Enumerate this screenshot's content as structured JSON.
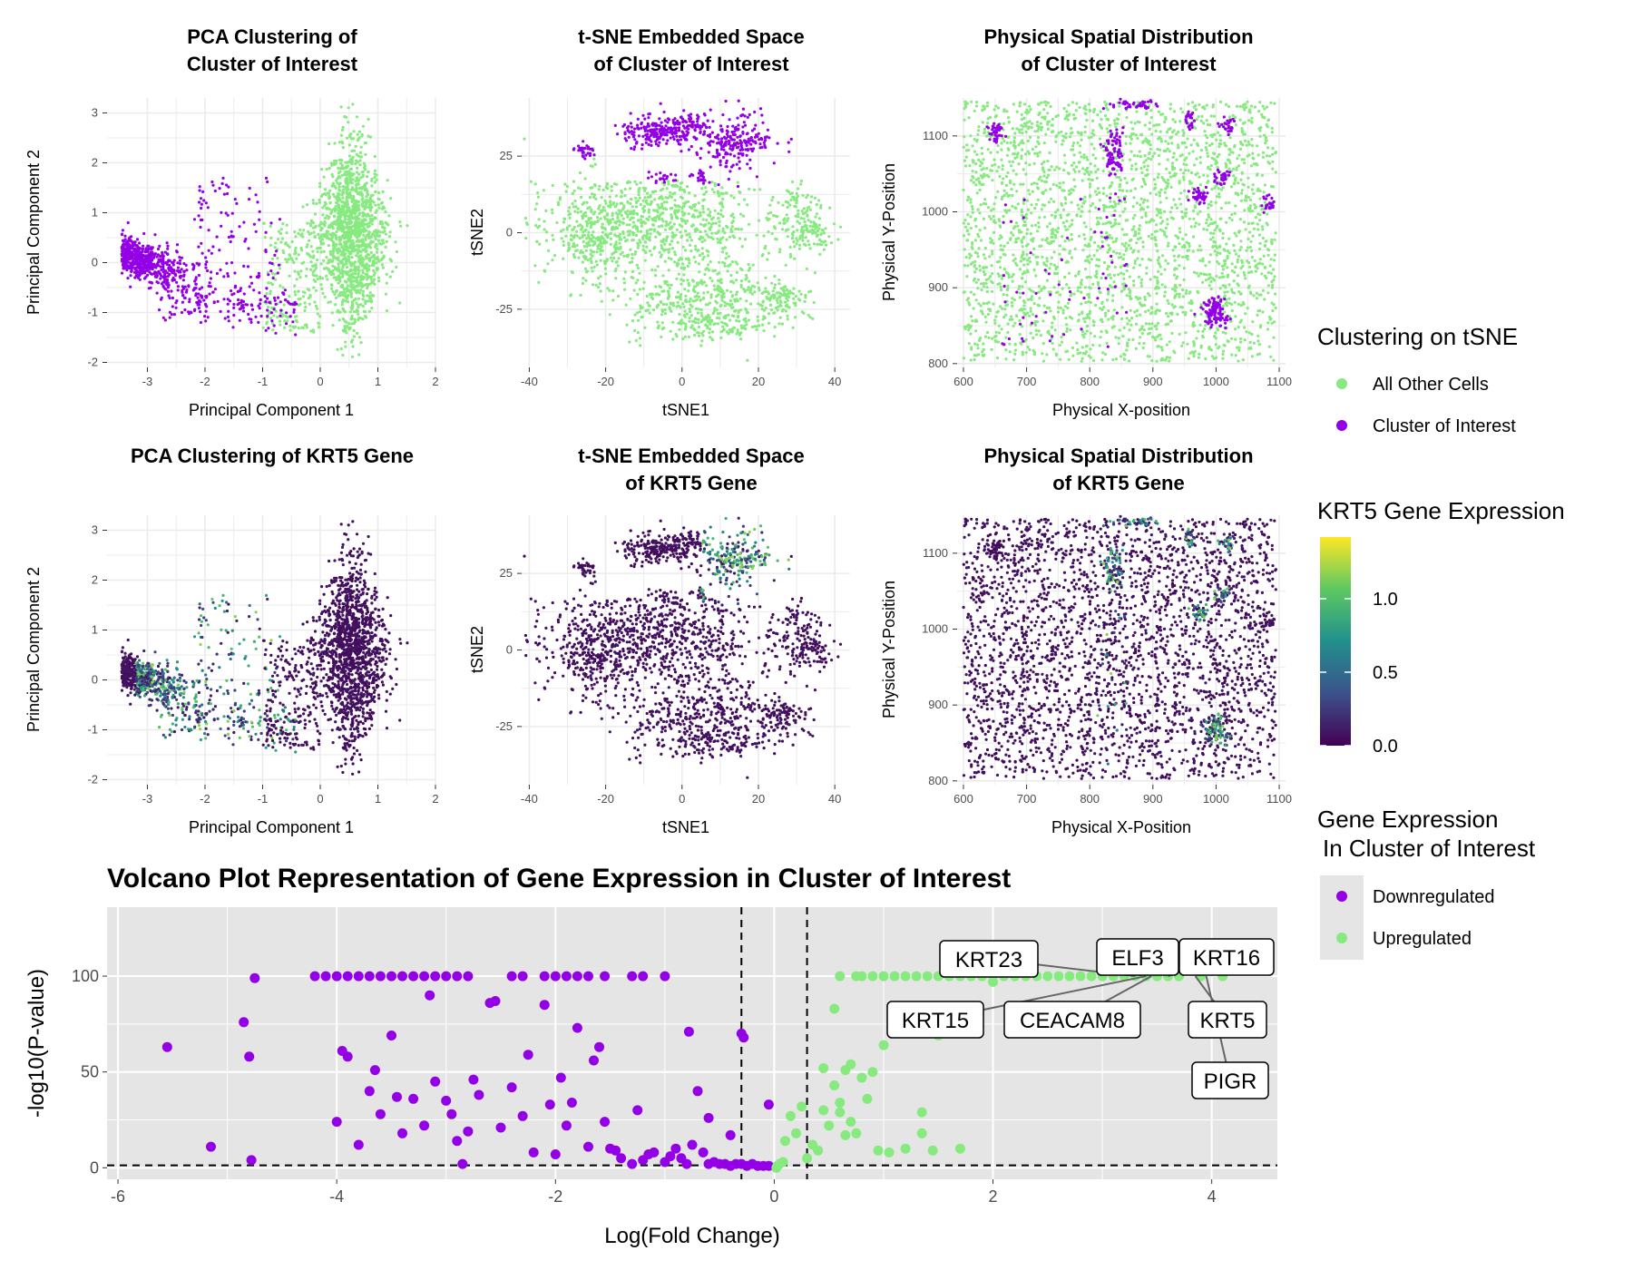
{
  "colors": {
    "cluster": "#9400e6",
    "other": "#86ea7f",
    "viridis": [
      "#440154",
      "#3b528b",
      "#21908c",
      "#5dc863",
      "#fde725"
    ],
    "volcano_bg": "#e5e5e5"
  },
  "legends": {
    "cluster": {
      "title": "Clustering on tSNE",
      "items": [
        "All Other Cells",
        "Cluster of Interest"
      ]
    },
    "expression": {
      "title": "KRT5 Gene Expression",
      "ticks": [
        "1.0",
        "0.5",
        "0.0"
      ]
    },
    "regulation": {
      "title_line1": "Gene Expression",
      "title_line2": "In Cluster of Interest",
      "items": [
        "Downregulated",
        "Upregulated"
      ]
    }
  },
  "chart_data": [
    {
      "type": "scatter",
      "title_line1": "PCA Clustering of",
      "title_line2": "Cluster of Interest",
      "xlabel": "Principal Component 1",
      "ylabel": "Principal Component 2",
      "xlim": [
        -3.7,
        2.0
      ],
      "ylim": [
        -2.1,
        3.3
      ],
      "xticks": [
        -3,
        -2,
        -1,
        0,
        1,
        2
      ],
      "yticks": [
        -2,
        -1,
        0,
        1,
        2,
        3
      ],
      "color_by": "cluster",
      "series": [
        {
          "name": "All Other Cells",
          "regions": [
            {
              "cx": 0.6,
              "cy": 0.5,
              "sx": 0.45,
              "sy": 1.1
            }
          ]
        },
        {
          "name": "Cluster of Interest",
          "regions": [
            {
              "cx": -2.9,
              "cy": 0.1,
              "sx": 0.4,
              "sy": 0.35
            }
          ]
        }
      ]
    },
    {
      "type": "scatter",
      "title_line1": "t-SNE Embedded Space",
      "title_line2": "of Cluster of Interest",
      "xlabel": "tSNE1",
      "ylabel": "tSNE2",
      "xlim": [
        -42,
        44
      ],
      "ylim": [
        -44,
        44
      ],
      "xticks": [
        -40,
        -20,
        0,
        20,
        40
      ],
      "yticks": [
        -25,
        0,
        25
      ],
      "color_by": "cluster",
      "series": [
        {
          "name": "All Other Cells",
          "regions": [
            {
              "cx": -5,
              "cy": 0,
              "sx": 15,
              "sy": 9
            },
            {
              "cx": 5,
              "cy": -22,
              "sx": 12,
              "sy": 6
            },
            {
              "cx": 25,
              "cy": -22,
              "sx": 4,
              "sy": 4
            },
            {
              "cx": 33,
              "cy": 0,
              "sx": 4,
              "sy": 5
            }
          ]
        },
        {
          "name": "Cluster of Interest",
          "regions": [
            {
              "cx": -5,
              "cy": 34,
              "sx": 5,
              "sy": 3
            },
            {
              "cx": 13,
              "cy": 30,
              "sx": 6,
              "sy": 5
            },
            {
              "cx": -25,
              "cy": 27,
              "sx": 2,
              "sy": 1.5
            }
          ]
        }
      ]
    },
    {
      "type": "scatter",
      "title_line1": "Physical Spatial Distribution",
      "title_line2": "of Cluster of Interest",
      "xlabel": "Physical X-position",
      "ylabel": "Physical Y-Position",
      "xlim": [
        590,
        1110
      ],
      "ylim": [
        795,
        1150
      ],
      "xticks": [
        600,
        700,
        800,
        900,
        1000,
        1100
      ],
      "yticks": [
        800,
        900,
        1000,
        1100
      ],
      "color_by": "cluster",
      "series": [
        {
          "name": "All Other Cells",
          "regions": [
            {
              "cx": 850,
              "cy": 975,
              "sx": 140,
              "sy": 100
            }
          ]
        },
        {
          "name": "Cluster of Interest",
          "regions": [
            {
              "cx": 1000,
              "cy": 868,
              "sx": 10,
              "sy": 10
            },
            {
              "cx": 650,
              "cy": 1105,
              "sx": 7,
              "sy": 7
            },
            {
              "cx": 980,
              "cy": 1025,
              "sx": 8,
              "sy": 8
            },
            {
              "cx": 840,
              "cy": 1070,
              "sx": 10,
              "sy": 18
            }
          ]
        }
      ]
    },
    {
      "type": "scatter",
      "title_line1": "PCA Clustering of KRT5 Gene",
      "title_line2": "",
      "xlabel": "Principal Component 1",
      "ylabel": "Principal Component 2",
      "xlim": [
        -3.7,
        2.0
      ],
      "ylim": [
        -2.1,
        3.3
      ],
      "xticks": [
        -3,
        -2,
        -1,
        0,
        1,
        2
      ],
      "yticks": [
        -2,
        -1,
        0,
        1,
        2,
        3
      ],
      "color_by": "KRT5 expression",
      "color_range": [
        0.0,
        1.4
      ]
    },
    {
      "type": "scatter",
      "title_line1": "t-SNE Embedded Space",
      "title_line2": "of KRT5 Gene",
      "xlabel": "tSNE1",
      "ylabel": "tSNE2",
      "xlim": [
        -42,
        44
      ],
      "ylim": [
        -44,
        44
      ],
      "xticks": [
        -40,
        -20,
        0,
        20,
        40
      ],
      "yticks": [
        -25,
        0,
        25
      ],
      "color_by": "KRT5 expression",
      "color_range": [
        0.0,
        1.4
      ]
    },
    {
      "type": "scatter",
      "title_line1": "Physical Spatial Distribution",
      "title_line2": "of KRT5 Gene",
      "xlabel": "Physical X-Position",
      "ylabel": "Physical Y-Position",
      "xlim": [
        590,
        1110
      ],
      "ylim": [
        795,
        1150
      ],
      "xticks": [
        600,
        700,
        800,
        900,
        1000,
        1100
      ],
      "yticks": [
        800,
        900,
        1000,
        1100
      ],
      "color_by": "KRT5 expression",
      "color_range": [
        0.0,
        1.4
      ]
    },
    {
      "type": "scatter",
      "title": "Volcano Plot Representation of Gene Expression in Cluster of Interest",
      "xlabel": "Log(Fold Change)",
      "ylabel": "-log10(P-value)",
      "xlim": [
        -6.1,
        4.6
      ],
      "ylim": [
        -6,
        136
      ],
      "xticks": [
        -6,
        -4,
        -2,
        0,
        2,
        4
      ],
      "yticks": [
        0,
        50,
        100
      ],
      "thresholds": {
        "x": [
          -0.3,
          0.3
        ],
        "y": 1.3
      },
      "series": [
        {
          "name": "Downregulated",
          "points": [
            [
              -5.55,
              63
            ],
            [
              -5.15,
              11
            ],
            [
              -4.85,
              76
            ],
            [
              -4.8,
              58
            ],
            [
              -4.78,
              4
            ],
            [
              -4.75,
              99
            ],
            [
              -4.2,
              100
            ],
            [
              -4.1,
              100
            ],
            [
              -4.0,
              100
            ],
            [
              -3.9,
              100
            ],
            [
              -3.8,
              100
            ],
            [
              -3.7,
              100
            ],
            [
              -3.6,
              100
            ],
            [
              -3.5,
              100
            ],
            [
              -3.4,
              100
            ],
            [
              -3.3,
              100
            ],
            [
              -3.2,
              100
            ],
            [
              -3.1,
              100
            ],
            [
              -3.0,
              100
            ],
            [
              -2.9,
              100
            ],
            [
              -2.8,
              100
            ],
            [
              -2.4,
              100
            ],
            [
              -2.3,
              100
            ],
            [
              -2.1,
              100
            ],
            [
              -2.0,
              100
            ],
            [
              -1.9,
              100
            ],
            [
              -1.8,
              100
            ],
            [
              -1.7,
              100
            ],
            [
              -1.55,
              100
            ],
            [
              -1.3,
              100
            ],
            [
              -1.2,
              100
            ],
            [
              -1.0,
              100
            ],
            [
              -4.0,
              24
            ],
            [
              -3.95,
              61
            ],
            [
              -3.9,
              58
            ],
            [
              -3.8,
              12
            ],
            [
              -3.7,
              40
            ],
            [
              -3.65,
              51
            ],
            [
              -3.6,
              28
            ],
            [
              -3.5,
              69
            ],
            [
              -3.45,
              37
            ],
            [
              -3.4,
              18
            ],
            [
              -3.3,
              36
            ],
            [
              -3.2,
              22
            ],
            [
              -3.15,
              90
            ],
            [
              -3.1,
              45
            ],
            [
              -3.0,
              35
            ],
            [
              -2.95,
              28
            ],
            [
              -2.9,
              14
            ],
            [
              -2.85,
              2
            ],
            [
              -2.8,
              19
            ],
            [
              -2.75,
              46
            ],
            [
              -2.7,
              38
            ],
            [
              -2.6,
              86
            ],
            [
              -2.55,
              87
            ],
            [
              -2.5,
              21
            ],
            [
              -2.4,
              42
            ],
            [
              -2.3,
              27
            ],
            [
              -2.25,
              59
            ],
            [
              -2.2,
              8
            ],
            [
              -2.1,
              85
            ],
            [
              -2.05,
              33
            ],
            [
              -2.0,
              7
            ],
            [
              -1.95,
              47
            ],
            [
              -1.9,
              22
            ],
            [
              -1.85,
              34
            ],
            [
              -1.8,
              73
            ],
            [
              -1.7,
              11
            ],
            [
              -1.65,
              56
            ],
            [
              -1.6,
              63
            ],
            [
              -1.55,
              24
            ],
            [
              -1.5,
              10
            ],
            [
              -1.45,
              9
            ],
            [
              -1.4,
              5
            ],
            [
              -1.3,
              2
            ],
            [
              -1.2,
              4
            ],
            [
              -1.15,
              7
            ],
            [
              -1.1,
              8
            ],
            [
              -1.0,
              3
            ],
            [
              -0.95,
              6
            ],
            [
              -0.9,
              10
            ],
            [
              -0.85,
              5
            ],
            [
              -0.8,
              2
            ],
            [
              -0.75,
              12
            ],
            [
              -0.7,
              40
            ],
            [
              -0.65,
              8
            ],
            [
              -0.6,
              2
            ],
            [
              -0.55,
              3
            ],
            [
              -0.5,
              2
            ],
            [
              -0.45,
              2
            ],
            [
              -0.4,
              1
            ],
            [
              -0.35,
              2
            ],
            [
              -0.3,
              2
            ],
            [
              -0.25,
              1
            ],
            [
              -0.2,
              2
            ],
            [
              -0.15,
              1
            ],
            [
              -0.1,
              1
            ],
            [
              -0.05,
              1
            ],
            [
              -0.3,
              70
            ],
            [
              -0.28,
              68
            ],
            [
              -0.78,
              71
            ],
            [
              -0.05,
              33
            ],
            [
              -1.25,
              30
            ],
            [
              -0.6,
              26
            ],
            [
              -0.4,
              17
            ]
          ]
        },
        {
          "name": "Upregulated",
          "points": [
            [
              0.6,
              100
            ],
            [
              0.75,
              100
            ],
            [
              0.8,
              100
            ],
            [
              0.9,
              100
            ],
            [
              1.0,
              100
            ],
            [
              1.1,
              100
            ],
            [
              1.2,
              100
            ],
            [
              1.3,
              100
            ],
            [
              1.4,
              100
            ],
            [
              1.5,
              100
            ],
            [
              1.6,
              100
            ],
            [
              1.7,
              100
            ],
            [
              1.8,
              100
            ],
            [
              1.9,
              100
            ],
            [
              2.0,
              100
            ],
            [
              2.1,
              100
            ],
            [
              2.2,
              100
            ],
            [
              2.3,
              100
            ],
            [
              2.4,
              100
            ],
            [
              2.5,
              100
            ],
            [
              2.6,
              100
            ],
            [
              2.7,
              100
            ],
            [
              2.8,
              100
            ],
            [
              2.9,
              100
            ],
            [
              3.0,
              100
            ],
            [
              3.1,
              100
            ],
            [
              3.2,
              100
            ],
            [
              3.3,
              100
            ],
            [
              3.4,
              100
            ],
            [
              3.5,
              100
            ],
            [
              3.6,
              100
            ],
            [
              3.7,
              100
            ],
            [
              3.9,
              100
            ],
            [
              4.1,
              100
            ],
            [
              0.55,
              83
            ],
            [
              1.0,
              64
            ],
            [
              1.5,
              69
            ],
            [
              1.8,
              75
            ],
            [
              2.0,
              97
            ],
            [
              0.45,
              52
            ],
            [
              0.55,
              43
            ],
            [
              0.65,
              51
            ],
            [
              0.7,
              54
            ],
            [
              0.8,
              47
            ],
            [
              0.9,
              50
            ],
            [
              0.85,
              36
            ],
            [
              0.7,
              24
            ],
            [
              0.65,
              17
            ],
            [
              0.6,
              29
            ],
            [
              0.5,
              22
            ],
            [
              0.45,
              30
            ],
            [
              0.4,
              9
            ],
            [
              0.35,
              12
            ],
            [
              0.3,
              5
            ],
            [
              0.25,
              32
            ],
            [
              0.2,
              18
            ],
            [
              0.15,
              27
            ],
            [
              0.1,
              14
            ],
            [
              0.08,
              3
            ],
            [
              0.05,
              2
            ],
            [
              0.03,
              1
            ],
            [
              0.02,
              0
            ],
            [
              0.95,
              9
            ],
            [
              1.2,
              10
            ],
            [
              1.35,
              18
            ],
            [
              1.35,
              29
            ],
            [
              1.45,
              9
            ],
            [
              1.7,
              10
            ],
            [
              0.6,
              34
            ],
            [
              0.75,
              18
            ],
            [
              1.05,
              8
            ]
          ]
        }
      ],
      "labels": [
        {
          "text": "KRT23",
          "point": [
            3.3,
            100
          ]
        },
        {
          "text": "ELF3",
          "point": [
            3.35,
            100
          ]
        },
        {
          "text": "KRT16",
          "point": [
            3.6,
            100
          ]
        },
        {
          "text": "KRT15",
          "point": [
            3.4,
            100
          ]
        },
        {
          "text": "CEACAM8",
          "point": [
            3.45,
            100
          ]
        },
        {
          "text": "KRT5",
          "point": [
            3.85,
            100
          ]
        },
        {
          "text": "PIGR",
          "point": [
            3.95,
            100
          ]
        }
      ]
    }
  ]
}
